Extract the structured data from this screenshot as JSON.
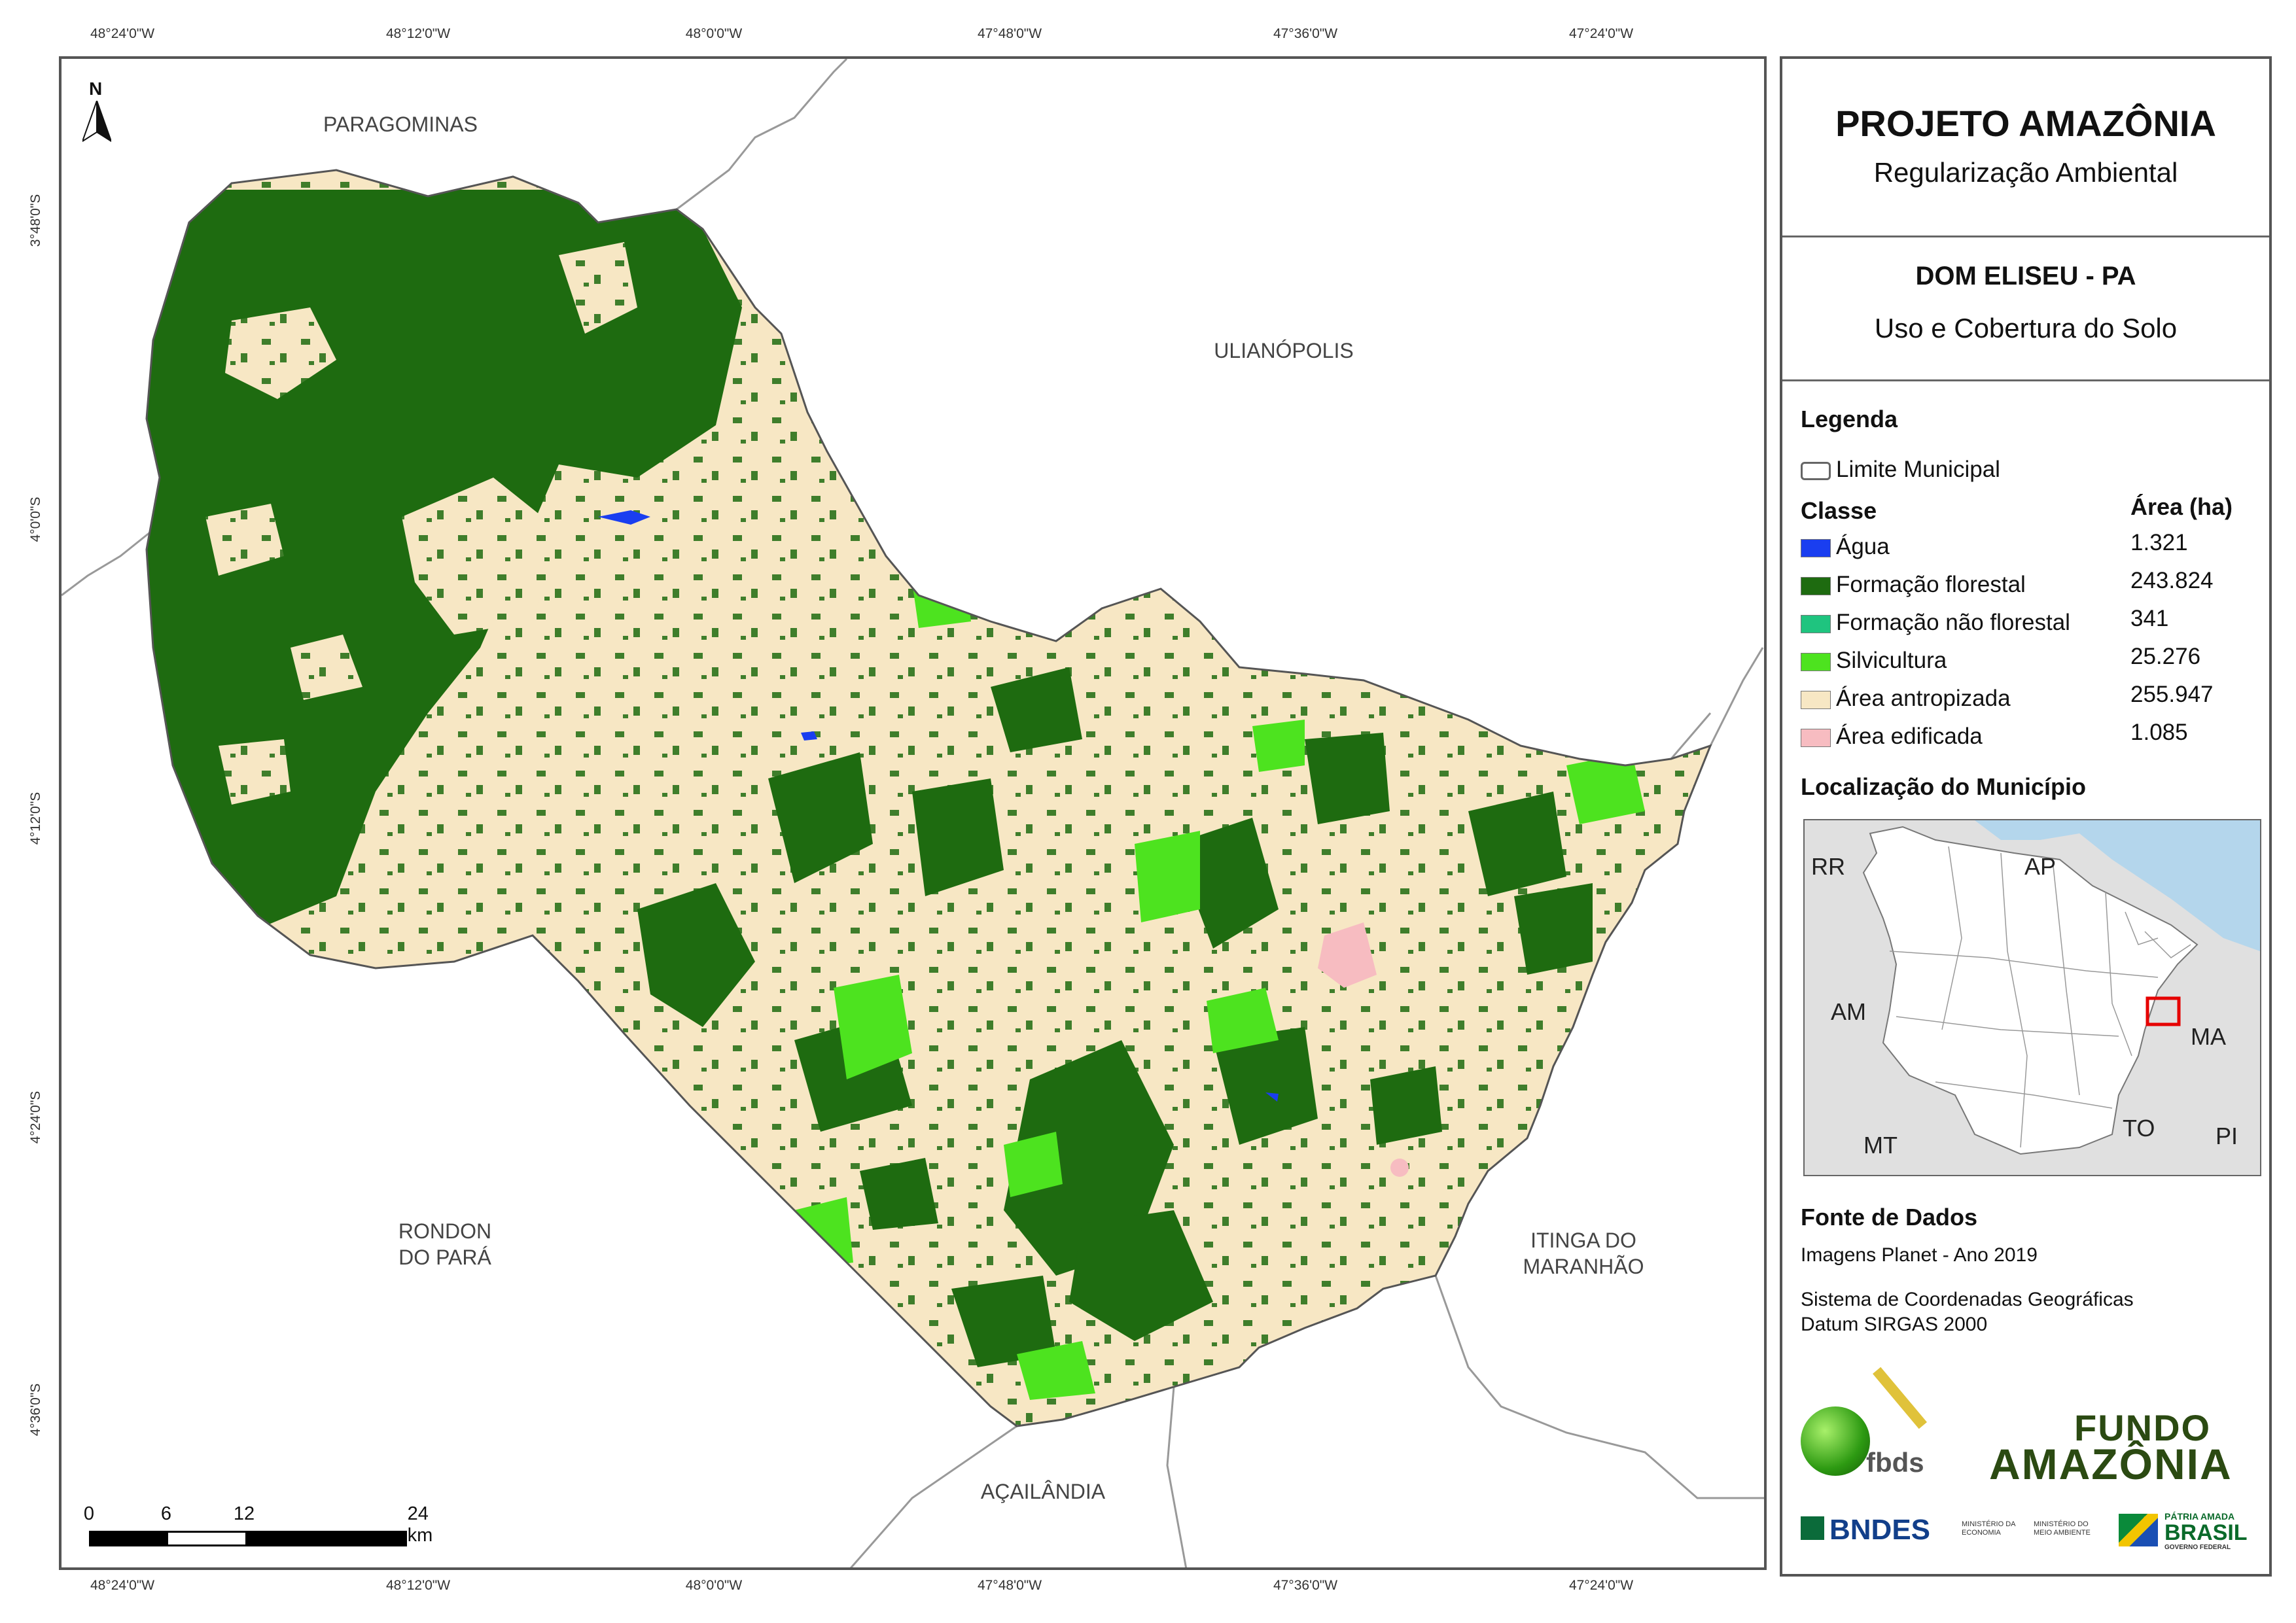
{
  "coords": {
    "top": [
      "48°24'0\"W",
      "48°12'0\"W",
      "48°0'0\"W",
      "47°48'0\"W",
      "47°36'0\"W",
      "47°24'0\"W"
    ],
    "bottom": [
      "48°24'0\"W",
      "48°12'0\"W",
      "48°0'0\"W",
      "47°48'0\"W",
      "47°36'0\"W",
      "47°24'0\"W"
    ],
    "left": [
      "3°48'0\"S",
      "4°0'0\"S",
      "4°12'0\"S",
      "4°24'0\"S",
      "4°36'0\"S"
    ]
  },
  "map": {
    "north": "N",
    "neighbors": {
      "paragominas": "PARAGOMINAS",
      "ulianopolis": "ULIANÓPOLIS",
      "rondon": "RONDON\nDO PARÁ",
      "itinga": "ITINGA DO\nMARANHÃO",
      "acailandia": "AÇAILÂNDIA"
    },
    "scale": {
      "labels": [
        "0",
        "6",
        "12",
        "24 km"
      ]
    }
  },
  "panel": {
    "title": "PROJETO AMAZÔNIA",
    "subtitle": "Regularização Ambiental",
    "municipality": "DOM ELISEU - PA",
    "theme": "Uso e Cobertura do Solo",
    "legend_title": "Legenda",
    "boundary_label": "Limite Municipal",
    "class_header": "Classe",
    "area_header": "Área (ha)",
    "classes": [
      {
        "label": "Água",
        "area": "1.321",
        "color": "#1a3ef0"
      },
      {
        "label": "Formação florestal",
        "area": "243.824",
        "color": "#1e6b10"
      },
      {
        "label": "Formação não florestal",
        "area": "341",
        "color": "#1fc47f"
      },
      {
        "label": "Silvicultura",
        "area": "25.276",
        "color": "#4de31f"
      },
      {
        "label": "Área antropizada",
        "area": "255.947",
        "color": "#f7e7c4"
      },
      {
        "label": "Área edificada",
        "area": "1.085",
        "color": "#f7bcc1"
      }
    ],
    "location_title": "Localização do Município",
    "inset_labels": {
      "rr": "RR",
      "ap": "AP",
      "am": "AM",
      "ma": "MA",
      "mt": "MT",
      "to": "TO",
      "pi": "PI"
    },
    "source_title": "Fonte de Dados",
    "source_line": "Imagens Planet - Ano 2019",
    "crs_line1": "Sistema de Coordenadas Geográficas",
    "crs_line2": "Datum SIRGAS 2000",
    "logos": {
      "fbds": "fbds",
      "fundo_1": "FUNDO",
      "fundo_2": "AMAZÔNIA",
      "bndes": "BNDES",
      "min_economia": "MINISTÉRIO DA\nECONOMIA",
      "min_ambiente": "MINISTÉRIO DO\nMEIO AMBIENTE",
      "patria": "PÁTRIA AMADA",
      "brasil": "BRASIL",
      "governo": "GOVERNO FEDERAL"
    }
  }
}
